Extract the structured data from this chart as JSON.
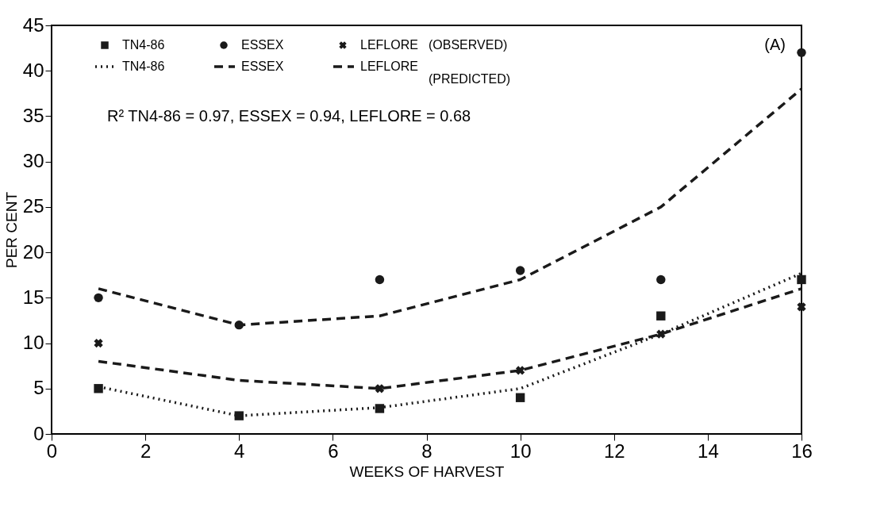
{
  "chart_data": {
    "type": "line",
    "xlabel": "WEEKS OF HARVEST",
    "ylabel": "PER CENT",
    "x": [
      1,
      4,
      7,
      10,
      13,
      16
    ],
    "xlim": [
      0,
      16
    ],
    "xticks": [
      0,
      2,
      4,
      6,
      8,
      10,
      12,
      14,
      16
    ],
    "ylim": [
      0,
      45
    ],
    "yticks": [
      0,
      5,
      10,
      15,
      20,
      25,
      30,
      35,
      40,
      45
    ],
    "grid": false,
    "legend": "top left",
    "annotations": [
      "(OBSERVED)",
      "(PREDICTED)",
      "R² TN4-86 = 0.97, ESSEX = 0.94, LEFLORE = 0.68",
      "(A)"
    ],
    "series": [
      {
        "name": "TN4-86",
        "type": "scatter",
        "marker": "square",
        "color": "#1a1a1a",
        "values": [
          5,
          2,
          2.8,
          4,
          13,
          17
        ]
      },
      {
        "name": "ESSEX",
        "type": "scatter",
        "marker": "circle",
        "color": "#1a1a1a",
        "values": [
          15,
          12,
          17,
          18,
          17,
          42
        ]
      },
      {
        "name": "LEFLORE",
        "type": "scatter",
        "marker": "cross",
        "color": "#1a1a1a",
        "values": [
          10,
          null,
          5,
          7,
          11,
          14
        ]
      },
      {
        "name": "TN4-86",
        "line_style": "dotted",
        "color": "#1a1a1a",
        "values": [
          5.2,
          2,
          2.9,
          5,
          11,
          17.7
        ]
      },
      {
        "name": "ESSEX",
        "line_style": "dashed",
        "color": "#1a1a1a",
        "values": [
          16,
          12,
          13,
          17,
          25,
          38
        ]
      },
      {
        "name": "LEFLORE",
        "line_style": "dashed",
        "color": "#1a1a1a",
        "values": [
          8,
          5.9,
          5,
          7,
          11,
          16
        ]
      }
    ]
  }
}
